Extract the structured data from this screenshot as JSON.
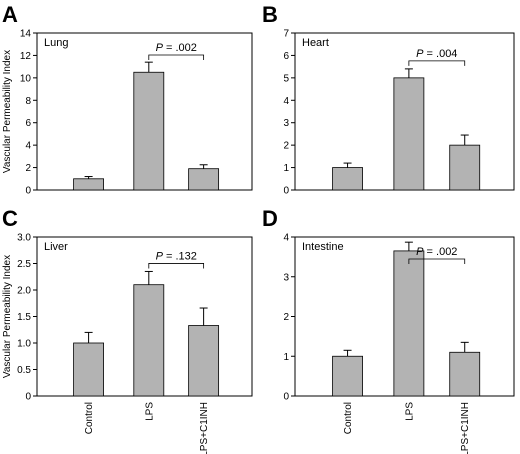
{
  "chart_data": [
    {
      "type": "bar",
      "panel": "A",
      "title": "Lung",
      "ylabel": "Vascular Permeability Index",
      "categories": [
        "Control",
        "LPS",
        "LPS+C1INH"
      ],
      "values": [
        1.0,
        10.5,
        1.9
      ],
      "errors": [
        0.2,
        0.9,
        0.35
      ],
      "ylim": [
        0,
        14
      ],
      "yticks": [
        0,
        2,
        4,
        6,
        8,
        10,
        12,
        14
      ],
      "ytick_labels": [
        "0",
        "2",
        "4",
        "6",
        "8",
        "10",
        "12",
        "14"
      ],
      "annotation": {
        "p_prefix": "P",
        "p_value": " = .002",
        "from": 1,
        "to": 2
      },
      "show_category_labels": false
    },
    {
      "type": "bar",
      "panel": "B",
      "title": "Heart",
      "ylabel": "",
      "categories": [
        "Control",
        "LPS",
        "LPS+C1INH"
      ],
      "values": [
        1.0,
        5.0,
        2.0
      ],
      "errors": [
        0.2,
        0.4,
        0.45
      ],
      "ylim": [
        0,
        7
      ],
      "yticks": [
        0,
        1,
        2,
        3,
        4,
        5,
        6,
        7
      ],
      "ytick_labels": [
        "0",
        "1",
        "2",
        "3",
        "4",
        "5",
        "6",
        "7"
      ],
      "annotation": {
        "p_prefix": "P",
        "p_value": " = .004",
        "from": 1,
        "to": 2
      },
      "show_category_labels": false
    },
    {
      "type": "bar",
      "panel": "C",
      "title": "Liver",
      "ylabel": "Vascular Permeability Index",
      "categories": [
        "Control",
        "LPS",
        "LPS+C1INH"
      ],
      "values": [
        1.0,
        2.1,
        1.33
      ],
      "errors": [
        0.2,
        0.25,
        0.33
      ],
      "ylim": [
        0,
        3.0
      ],
      "yticks": [
        0,
        0.5,
        1.0,
        1.5,
        2.0,
        2.5,
        3.0
      ],
      "ytick_labels": [
        "0",
        "0.5",
        "1.0",
        "1.5",
        "2.0",
        "2.5",
        "3.0"
      ],
      "annotation": {
        "p_prefix": "P",
        "p_value": " = .132",
        "from": 1,
        "to": 2
      },
      "show_category_labels": true
    },
    {
      "type": "bar",
      "panel": "D",
      "title": "Intestine",
      "ylabel": "",
      "categories": [
        "Control",
        "LPS",
        "LPS+C1INH"
      ],
      "values": [
        1.0,
        3.65,
        1.1
      ],
      "errors": [
        0.15,
        0.22,
        0.25
      ],
      "ylim": [
        0,
        4
      ],
      "yticks": [
        0,
        1,
        2,
        3,
        4
      ],
      "ytick_labels": [
        "0",
        "1",
        "2",
        "3",
        "4"
      ],
      "annotation": {
        "p_prefix": "P",
        "p_value": " = .002",
        "from": 1,
        "to": 2
      },
      "show_category_labels": true
    }
  ]
}
